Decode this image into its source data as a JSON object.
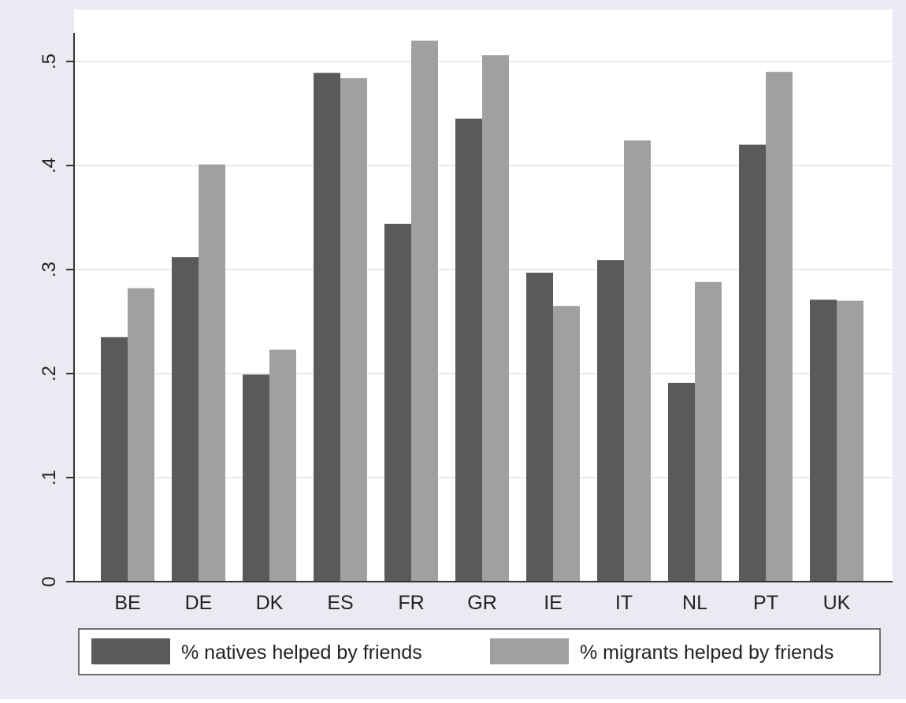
{
  "chart_data": {
    "type": "bar",
    "title": "",
    "xlabel": "",
    "ylabel": "",
    "categories": [
      "BE",
      "DE",
      "DK",
      "ES",
      "FR",
      "GR",
      "IE",
      "IT",
      "NL",
      "PT",
      "UK"
    ],
    "series": [
      {
        "name": "% natives helped by friends",
        "color": "#5a5a5a",
        "values": [
          0.235,
          0.312,
          0.199,
          0.489,
          0.344,
          0.445,
          0.297,
          0.309,
          0.191,
          0.42,
          0.271
        ]
      },
      {
        "name": "% migrants helped by friends",
        "color": "#a0a0a0",
        "values": [
          0.282,
          0.401,
          0.223,
          0.484,
          0.52,
          0.506,
          0.265,
          0.424,
          0.288,
          0.49,
          0.27
        ]
      }
    ],
    "ylim": [
      0,
      0.55
    ],
    "yticks": [
      0,
      0.1,
      0.2,
      0.3,
      0.4,
      0.5
    ],
    "ytick_labels": [
      "0",
      ".1",
      ".2",
      ".3",
      ".4",
      ".5"
    ],
    "grid": true,
    "legend_position": "bottom",
    "colors": {
      "outer_background": "#eaeaf2",
      "plot_background": "#ffffff",
      "gridline": "#eaeaf2",
      "axis": "#333333"
    }
  }
}
